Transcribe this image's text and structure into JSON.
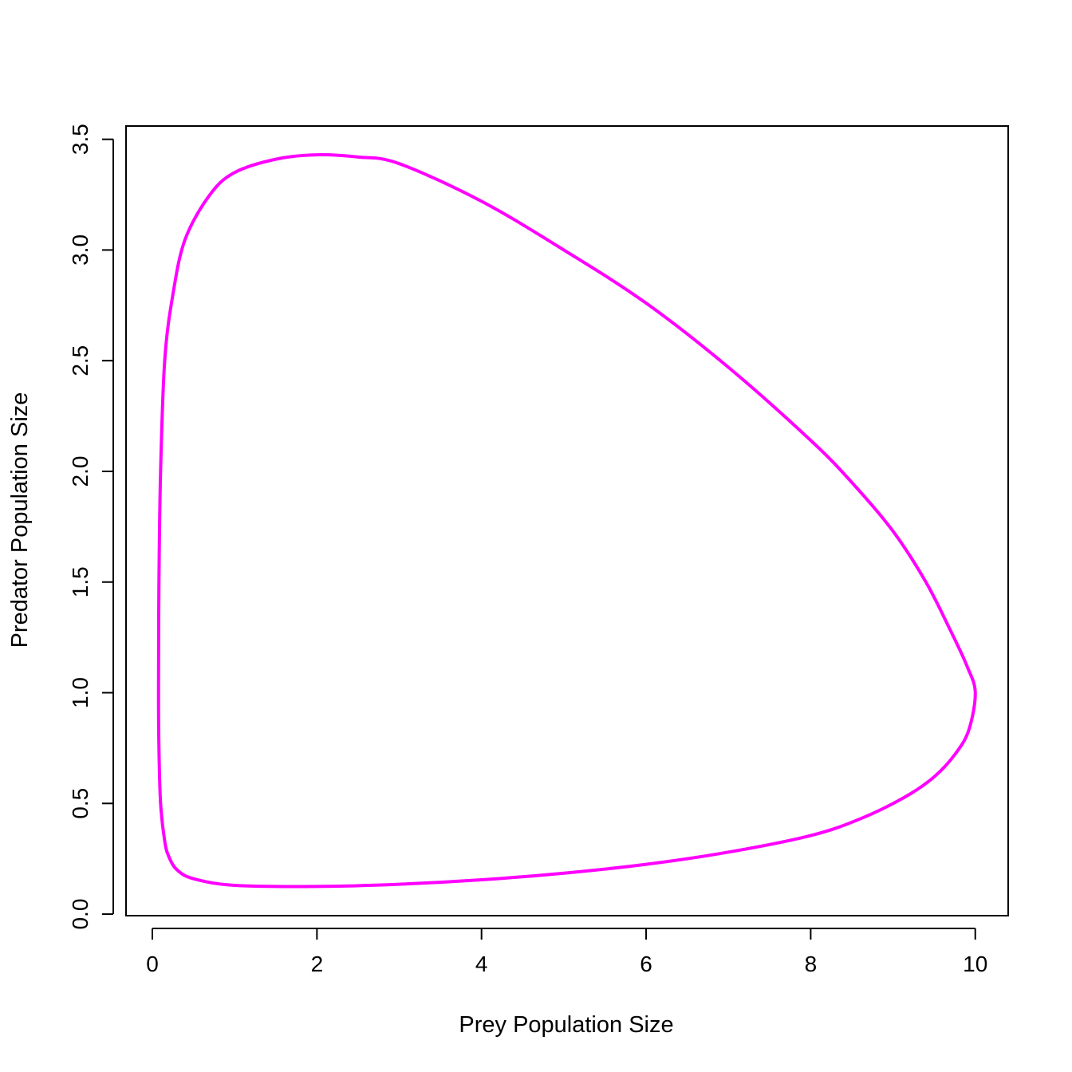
{
  "chart_data": {
    "type": "line",
    "xlabel": "Prey Population Size",
    "ylabel": "Predator Population Size",
    "xlim": [
      -0.32,
      10.4
    ],
    "ylim": [
      -0.007,
      3.56
    ],
    "x_ticks": [
      0,
      2,
      4,
      6,
      8,
      10
    ],
    "y_ticks": [
      0.0,
      0.5,
      1.0,
      1.5,
      2.0,
      2.5,
      3.0,
      3.5
    ],
    "x_tick_labels": [
      "0",
      "2",
      "4",
      "6",
      "8",
      "10"
    ],
    "y_tick_labels": [
      "0.0",
      "0.5",
      "1.0",
      "1.5",
      "2.0",
      "2.5",
      "3.0",
      "3.5"
    ],
    "grid": false,
    "legend": "none",
    "series": [
      {
        "color": "#ff00ff",
        "closed": true,
        "points": [
          [
            10.0,
            1.0
          ],
          [
            9.92,
            0.83
          ],
          [
            9.75,
            0.72
          ],
          [
            9.5,
            0.62
          ],
          [
            9.15,
            0.53
          ],
          [
            8.6,
            0.43
          ],
          [
            8.0,
            0.355
          ],
          [
            7.0,
            0.28
          ],
          [
            6.0,
            0.225
          ],
          [
            5.0,
            0.185
          ],
          [
            4.0,
            0.155
          ],
          [
            3.0,
            0.135
          ],
          [
            2.0,
            0.125
          ],
          [
            1.0,
            0.13
          ],
          [
            0.5,
            0.16
          ],
          [
            0.3,
            0.2
          ],
          [
            0.2,
            0.26
          ],
          [
            0.15,
            0.33
          ],
          [
            0.1,
            0.5
          ],
          [
            0.08,
            0.75
          ],
          [
            0.075,
            1.0
          ],
          [
            0.08,
            1.5
          ],
          [
            0.1,
            2.0
          ],
          [
            0.15,
            2.5
          ],
          [
            0.25,
            2.8
          ],
          [
            0.4,
            3.05
          ],
          [
            0.7,
            3.25
          ],
          [
            1.0,
            3.35
          ],
          [
            1.5,
            3.41
          ],
          [
            2.0,
            3.43
          ],
          [
            2.5,
            3.42
          ],
          [
            3.0,
            3.39
          ],
          [
            4.0,
            3.22
          ],
          [
            5.0,
            3.0
          ],
          [
            6.0,
            2.76
          ],
          [
            7.0,
            2.47
          ],
          [
            8.0,
            2.14
          ],
          [
            8.5,
            1.95
          ],
          [
            9.0,
            1.73
          ],
          [
            9.4,
            1.5
          ],
          [
            9.7,
            1.28
          ],
          [
            9.9,
            1.12
          ]
        ]
      }
    ]
  }
}
